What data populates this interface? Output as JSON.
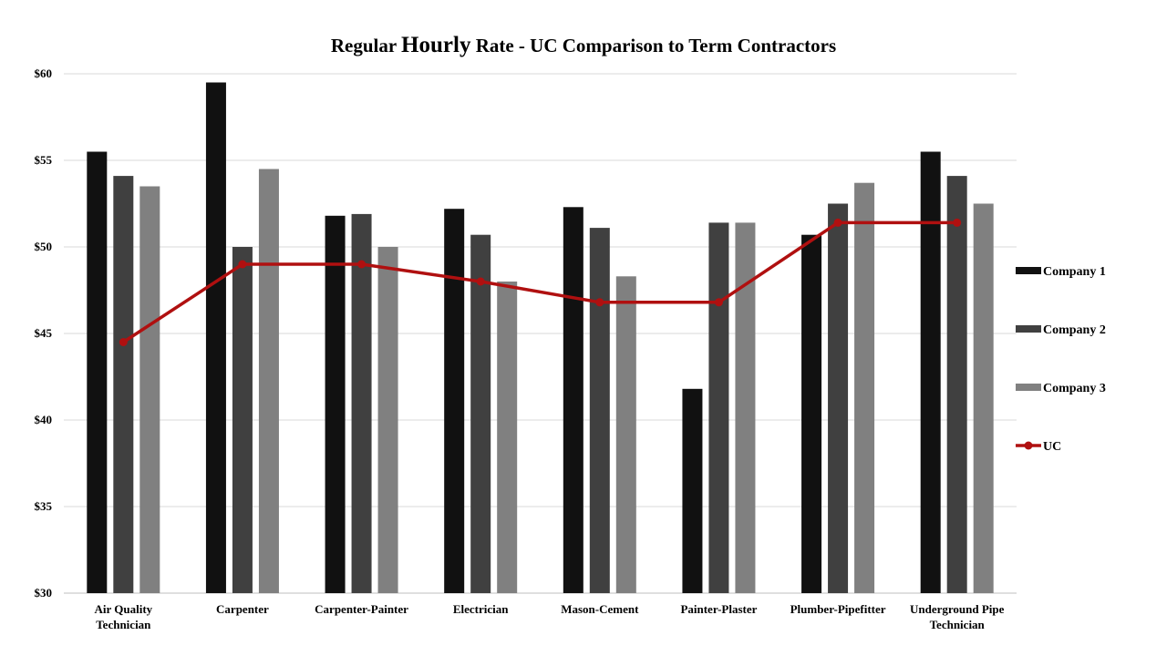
{
  "chart_data": {
    "type": "bar",
    "title_parts": [
      "Regular ",
      "Hourly",
      " Rate - UC Comparison to Term Contractors"
    ],
    "categories": [
      [
        "Air Quality",
        "Technician"
      ],
      [
        "Carpenter"
      ],
      [
        "Carpenter-Painter"
      ],
      [
        "Electrician"
      ],
      [
        "Mason-Cement"
      ],
      [
        "Painter-Plaster"
      ],
      [
        "Plumber-Pipefitter"
      ],
      [
        "Underground Pipe",
        "Technician"
      ]
    ],
    "ylim": [
      30,
      60
    ],
    "yticks": [
      30,
      35,
      40,
      45,
      50,
      55,
      60
    ],
    "ytick_labels": [
      "$30",
      "$35",
      "$40",
      "$45",
      "$50",
      "$55",
      "$60"
    ],
    "grid": true,
    "legend_position": "right",
    "series": [
      {
        "name": "Company 1",
        "kind": "bar",
        "color": "#111111",
        "values": [
          55.5,
          59.5,
          51.8,
          52.2,
          52.3,
          41.8,
          50.7,
          55.5
        ]
      },
      {
        "name": "Company 2",
        "kind": "bar",
        "color": "#404040",
        "values": [
          54.1,
          50.0,
          51.9,
          50.7,
          51.1,
          51.4,
          52.5,
          54.1
        ]
      },
      {
        "name": "Company 3",
        "kind": "bar",
        "color": "#808080",
        "values": [
          53.5,
          54.5,
          50.0,
          48.0,
          48.3,
          51.4,
          53.7,
          52.5
        ]
      },
      {
        "name": "UC",
        "kind": "line",
        "color": "#b01010",
        "values": [
          44.5,
          49.0,
          49.0,
          48.0,
          46.8,
          46.8,
          51.4,
          51.4
        ]
      }
    ]
  }
}
